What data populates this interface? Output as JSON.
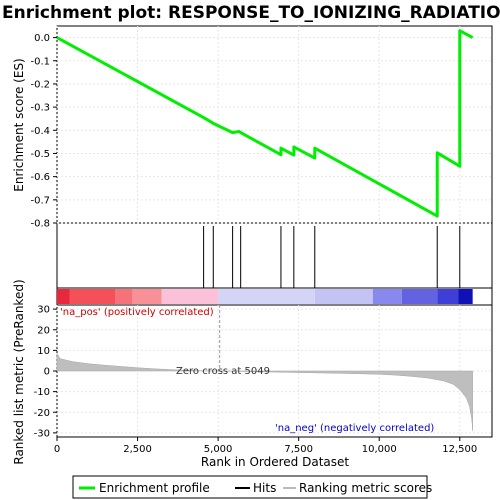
{
  "chart_data": {
    "type": "line",
    "title": "Enrichment plot: RESPONSE_TO_IONIZING_RADIATION",
    "es_panel": {
      "ylabel": "Enrichment score (ES)",
      "ylim": [
        -0.8,
        0.05
      ],
      "yticks": [
        "0.0",
        "-0.1",
        "-0.2",
        "-0.3",
        "-0.4",
        "-0.5",
        "-0.6",
        "-0.7",
        "-0.8"
      ],
      "ytick_values": [
        0.0,
        -0.1,
        -0.2,
        -0.3,
        -0.4,
        -0.5,
        -0.6,
        -0.7,
        -0.8
      ],
      "grid": true,
      "series_color": "#00ee00",
      "profile": [
        [
          0,
          0.0
        ],
        [
          4550,
          -0.345
        ],
        [
          4850,
          -0.37
        ],
        [
          5450,
          -0.41
        ],
        [
          5650,
          -0.405
        ],
        [
          5700,
          -0.41
        ],
        [
          6950,
          -0.505
        ],
        [
          6950,
          -0.477
        ],
        [
          7350,
          -0.507
        ],
        [
          7350,
          -0.472
        ],
        [
          8000,
          -0.52
        ],
        [
          8000,
          -0.477
        ],
        [
          11800,
          -0.77
        ],
        [
          11800,
          -0.497
        ],
        [
          12500,
          -0.555
        ],
        [
          12500,
          0.03
        ],
        [
          12900,
          0.0
        ]
      ]
    },
    "hits": [
      4550,
      4850,
      5450,
      5700,
      6950,
      7350,
      8000,
      11800,
      12500
    ],
    "ranked_panel": {
      "ylabel": "Ranked list metric (PreRanked)",
      "ylim": [
        -32,
        32
      ],
      "yticks": [
        "30",
        "20",
        "10",
        "0",
        "-10",
        "-20",
        "-30"
      ],
      "ytick_values": [
        30,
        20,
        10,
        0,
        -10,
        -20,
        -30
      ],
      "metric": [
        [
          0,
          8.5
        ],
        [
          100,
          6.0
        ],
        [
          500,
          4.5
        ],
        [
          1000,
          3.5
        ],
        [
          1500,
          2.8
        ],
        [
          2000,
          2.2
        ],
        [
          2500,
          1.6
        ],
        [
          3000,
          1.1
        ],
        [
          3500,
          0.7
        ],
        [
          4000,
          0.4
        ],
        [
          4500,
          0.15
        ],
        [
          5049,
          0.0
        ],
        [
          6000,
          -0.3
        ],
        [
          7000,
          -0.6
        ],
        [
          8000,
          -0.9
        ],
        [
          9000,
          -1.2
        ],
        [
          10000,
          -1.6
        ],
        [
          10500,
          -2.0
        ],
        [
          11000,
          -2.6
        ],
        [
          11500,
          -3.4
        ],
        [
          12000,
          -4.8
        ],
        [
          12300,
          -6.5
        ],
        [
          12500,
          -9.0
        ],
        [
          12700,
          -13.0
        ],
        [
          12800,
          -17.0
        ],
        [
          12870,
          -23.0
        ],
        [
          12900,
          -29.0
        ]
      ],
      "pos_label": "'na_pos' (positively correlated)",
      "neg_label": "'na_neg' (negatively correlated)",
      "zero_cross_label": "Zero cross at 5049",
      "zero_cross": 5049
    },
    "xlabel": "Rank in Ordered Dataset",
    "xlim": [
      0,
      13500
    ],
    "xticks": [
      "0",
      "2,500",
      "5,000",
      "7,500",
      "10,000",
      "12,500"
    ],
    "xtick_values": [
      0,
      2500,
      5000,
      7500,
      10000,
      12500
    ],
    "dataset_size": 12900,
    "heatmap_segments": [
      {
        "to": 400,
        "color": "#e8283c"
      },
      {
        "to": 1800,
        "color": "#f35057"
      },
      {
        "to": 2350,
        "color": "#f57278"
      },
      {
        "to": 3250,
        "color": "#f89197"
      },
      {
        "to": 5000,
        "color": "#fbc1d9"
      },
      {
        "to": 8000,
        "color": "#d4d4f6"
      },
      {
        "to": 9800,
        "color": "#c4c4f4"
      },
      {
        "to": 10700,
        "color": "#8888ee"
      },
      {
        "to": 11800,
        "color": "#6363e2"
      },
      {
        "to": 12450,
        "color": "#3f3fd8"
      },
      {
        "to": 12900,
        "color": "#1010b8"
      }
    ],
    "legend": {
      "items": [
        {
          "label": "Enrichment profile",
          "color": "#00ee00"
        },
        {
          "label": "Hits",
          "color": "#000000"
        },
        {
          "label": "Ranking metric scores",
          "color": "#bbbbbb"
        }
      ]
    }
  }
}
